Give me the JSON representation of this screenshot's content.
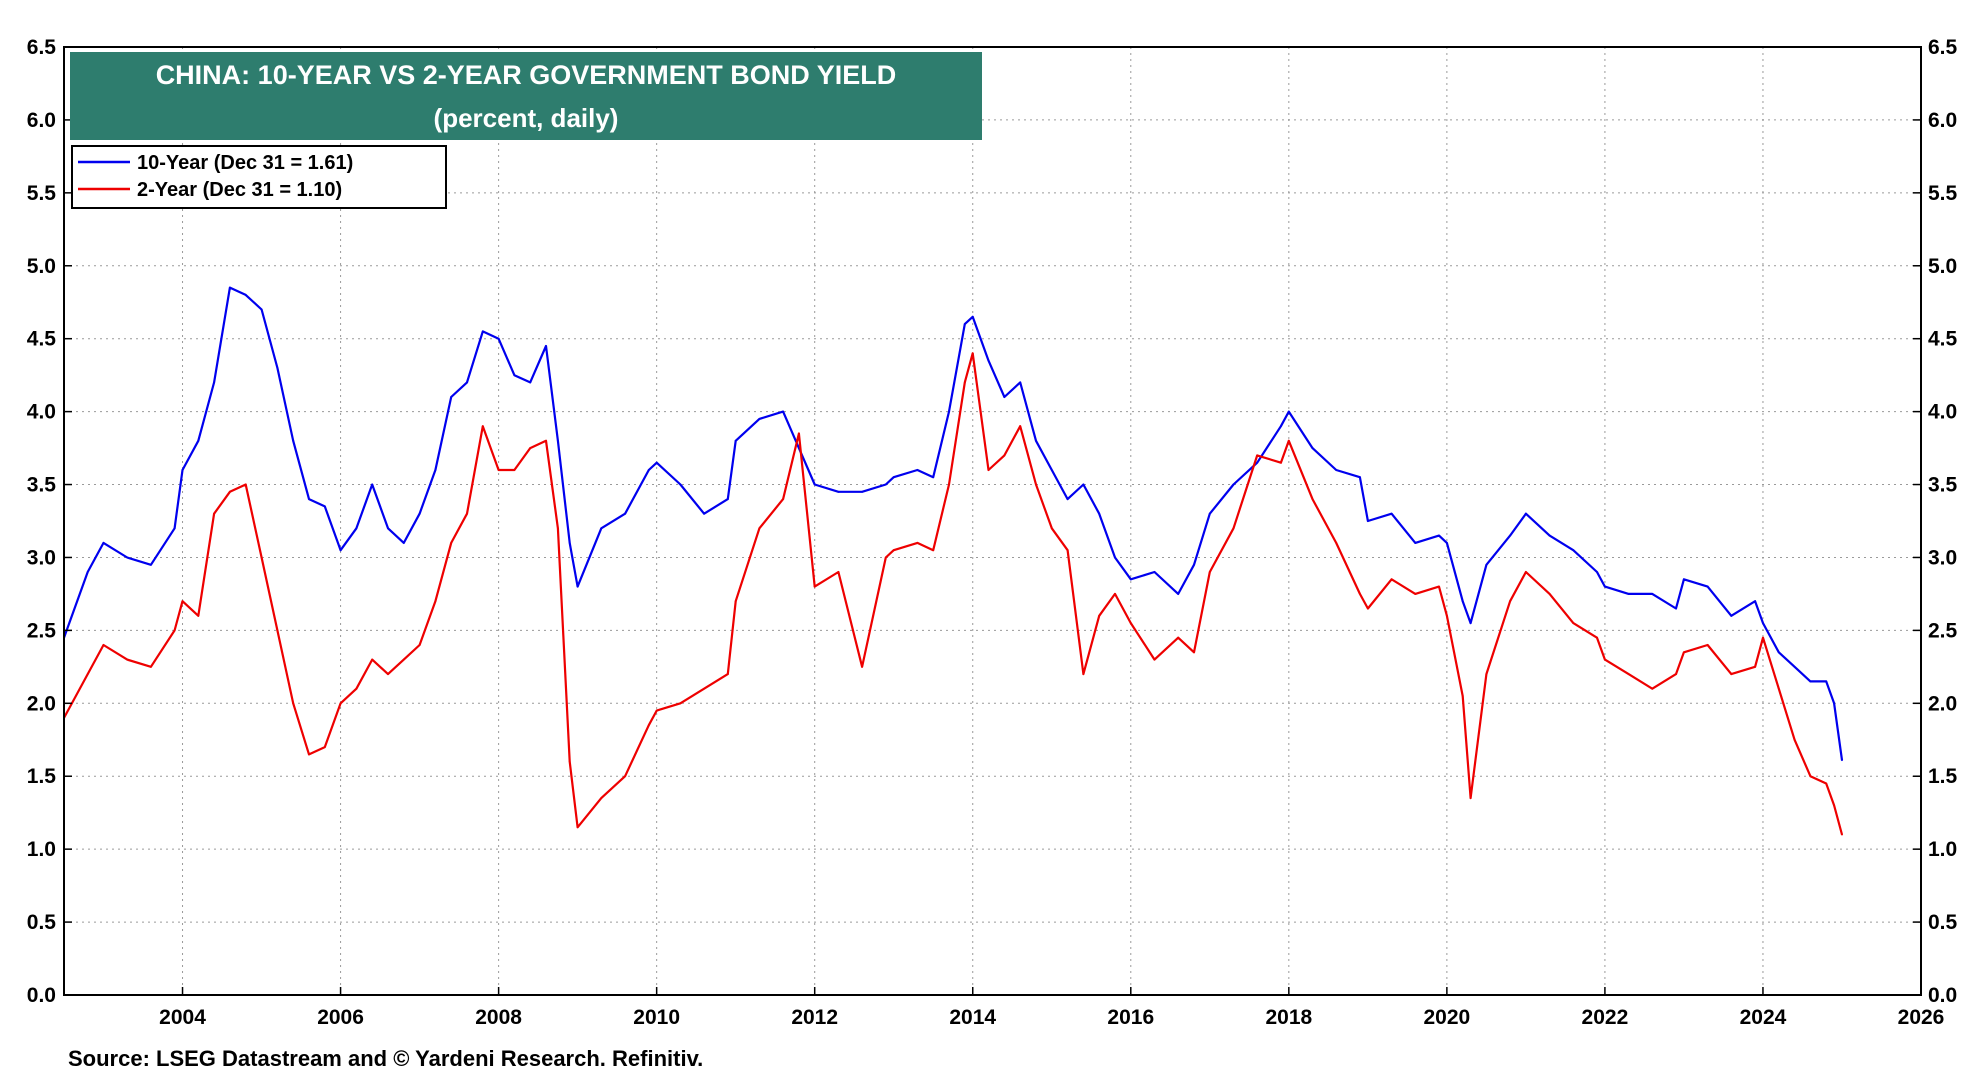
{
  "chart_data": {
    "type": "line",
    "title": "CHINA: 10-YEAR VS 2-YEAR GOVERNMENT BOND YIELD",
    "subtitle": "(percent, daily)",
    "xlabel": "",
    "ylabel": "",
    "xlim": [
      2002.5,
      2026
    ],
    "ylim": [
      0,
      6.5
    ],
    "x_ticks": [
      "2004",
      "2006",
      "2008",
      "2010",
      "2012",
      "2014",
      "2016",
      "2018",
      "2020",
      "2022",
      "2024",
      "2026"
    ],
    "y_ticks": [
      "0.0",
      "0.5",
      "1.0",
      "1.5",
      "2.0",
      "2.5",
      "3.0",
      "3.5",
      "4.0",
      "4.5",
      "5.0",
      "5.5",
      "6.0",
      "6.5"
    ],
    "grid": true,
    "legend_position": "top-left",
    "series": [
      {
        "name": "10-Year (Dec 31 = 1.61)",
        "color": "#0000ee",
        "x": [
          2002.5,
          2002.8,
          2003.0,
          2003.3,
          2003.6,
          2003.9,
          2004.0,
          2004.2,
          2004.4,
          2004.6,
          2004.8,
          2005.0,
          2005.2,
          2005.4,
          2005.6,
          2005.8,
          2006.0,
          2006.2,
          2006.4,
          2006.6,
          2006.8,
          2007.0,
          2007.2,
          2007.4,
          2007.6,
          2007.8,
          2008.0,
          2008.2,
          2008.4,
          2008.6,
          2008.75,
          2008.9,
          2009.0,
          2009.3,
          2009.6,
          2009.9,
          2010.0,
          2010.3,
          2010.6,
          2010.9,
          2011.0,
          2011.3,
          2011.6,
          2011.8,
          2012.0,
          2012.3,
          2012.6,
          2012.9,
          2013.0,
          2013.3,
          2013.5,
          2013.7,
          2013.9,
          2014.0,
          2014.2,
          2014.4,
          2014.6,
          2014.8,
          2015.0,
          2015.2,
          2015.4,
          2015.6,
          2015.8,
          2016.0,
          2016.3,
          2016.6,
          2016.8,
          2017.0,
          2017.3,
          2017.6,
          2017.9,
          2018.0,
          2018.3,
          2018.6,
          2018.9,
          2019.0,
          2019.3,
          2019.6,
          2019.9,
          2020.0,
          2020.2,
          2020.3,
          2020.5,
          2020.8,
          2021.0,
          2021.3,
          2021.6,
          2021.9,
          2022.0,
          2022.3,
          2022.6,
          2022.9,
          2023.0,
          2023.3,
          2023.6,
          2023.9,
          2024.0,
          2024.2,
          2024.4,
          2024.6,
          2024.8,
          2024.9,
          2025.0
        ],
        "values": [
          2.45,
          2.9,
          3.1,
          3.0,
          2.95,
          3.2,
          3.6,
          3.8,
          4.2,
          4.85,
          4.8,
          4.7,
          4.3,
          3.8,
          3.4,
          3.35,
          3.05,
          3.2,
          3.5,
          3.2,
          3.1,
          3.3,
          3.6,
          4.1,
          4.2,
          4.55,
          4.5,
          4.25,
          4.2,
          4.45,
          3.8,
          3.1,
          2.8,
          3.2,
          3.3,
          3.6,
          3.65,
          3.5,
          3.3,
          3.4,
          3.8,
          3.95,
          4.0,
          3.75,
          3.5,
          3.45,
          3.45,
          3.5,
          3.55,
          3.6,
          3.55,
          4.0,
          4.6,
          4.65,
          4.35,
          4.1,
          4.2,
          3.8,
          3.6,
          3.4,
          3.5,
          3.3,
          3.0,
          2.85,
          2.9,
          2.75,
          2.95,
          3.3,
          3.5,
          3.65,
          3.9,
          4.0,
          3.75,
          3.6,
          3.55,
          3.25,
          3.3,
          3.1,
          3.15,
          3.1,
          2.7,
          2.55,
          2.95,
          3.15,
          3.3,
          3.15,
          3.05,
          2.9,
          2.8,
          2.75,
          2.75,
          2.65,
          2.85,
          2.8,
          2.6,
          2.7,
          2.55,
          2.35,
          2.25,
          2.15,
          2.15,
          2.0,
          1.61
        ]
      },
      {
        "name": "2-Year (Dec 31 = 1.10)",
        "color": "#ee0000",
        "x": [
          2002.5,
          2002.8,
          2003.0,
          2003.3,
          2003.6,
          2003.9,
          2004.0,
          2004.2,
          2004.4,
          2004.6,
          2004.8,
          2005.0,
          2005.2,
          2005.4,
          2005.6,
          2005.8,
          2006.0,
          2006.2,
          2006.4,
          2006.6,
          2006.8,
          2007.0,
          2007.2,
          2007.4,
          2007.6,
          2007.8,
          2008.0,
          2008.2,
          2008.4,
          2008.6,
          2008.75,
          2008.9,
          2009.0,
          2009.3,
          2009.6,
          2009.9,
          2010.0,
          2010.3,
          2010.6,
          2010.9,
          2011.0,
          2011.3,
          2011.6,
          2011.8,
          2012.0,
          2012.3,
          2012.6,
          2012.9,
          2013.0,
          2013.3,
          2013.5,
          2013.7,
          2013.9,
          2014.0,
          2014.2,
          2014.4,
          2014.6,
          2014.8,
          2015.0,
          2015.2,
          2015.4,
          2015.6,
          2015.8,
          2016.0,
          2016.3,
          2016.6,
          2016.8,
          2017.0,
          2017.3,
          2017.6,
          2017.9,
          2018.0,
          2018.3,
          2018.6,
          2018.9,
          2019.0,
          2019.3,
          2019.6,
          2019.9,
          2020.0,
          2020.2,
          2020.3,
          2020.5,
          2020.8,
          2021.0,
          2021.3,
          2021.6,
          2021.9,
          2022.0,
          2022.3,
          2022.6,
          2022.9,
          2023.0,
          2023.3,
          2023.6,
          2023.9,
          2024.0,
          2024.2,
          2024.4,
          2024.6,
          2024.8,
          2024.9,
          2025.0
        ],
        "values": [
          1.9,
          2.2,
          2.4,
          2.3,
          2.25,
          2.5,
          2.7,
          2.6,
          3.3,
          3.45,
          3.5,
          3.0,
          2.5,
          2.0,
          1.65,
          1.7,
          2.0,
          2.1,
          2.3,
          2.2,
          2.3,
          2.4,
          2.7,
          3.1,
          3.3,
          3.9,
          3.6,
          3.6,
          3.75,
          3.8,
          3.2,
          1.6,
          1.15,
          1.35,
          1.5,
          1.85,
          1.95,
          2.0,
          2.1,
          2.2,
          2.7,
          3.2,
          3.4,
          3.85,
          2.8,
          2.9,
          2.25,
          3.0,
          3.05,
          3.1,
          3.05,
          3.5,
          4.2,
          4.4,
          3.6,
          3.7,
          3.9,
          3.5,
          3.2,
          3.05,
          2.2,
          2.6,
          2.75,
          2.55,
          2.3,
          2.45,
          2.35,
          2.9,
          3.2,
          3.7,
          3.65,
          3.8,
          3.4,
          3.1,
          2.75,
          2.65,
          2.85,
          2.75,
          2.8,
          2.6,
          2.05,
          1.35,
          2.2,
          2.7,
          2.9,
          2.75,
          2.55,
          2.45,
          2.3,
          2.2,
          2.1,
          2.2,
          2.35,
          2.4,
          2.2,
          2.25,
          2.45,
          2.1,
          1.75,
          1.5,
          1.45,
          1.3,
          1.1
        ]
      }
    ]
  },
  "source": "Source: LSEG Datastream and © Yardeni Research. Refinitiv."
}
